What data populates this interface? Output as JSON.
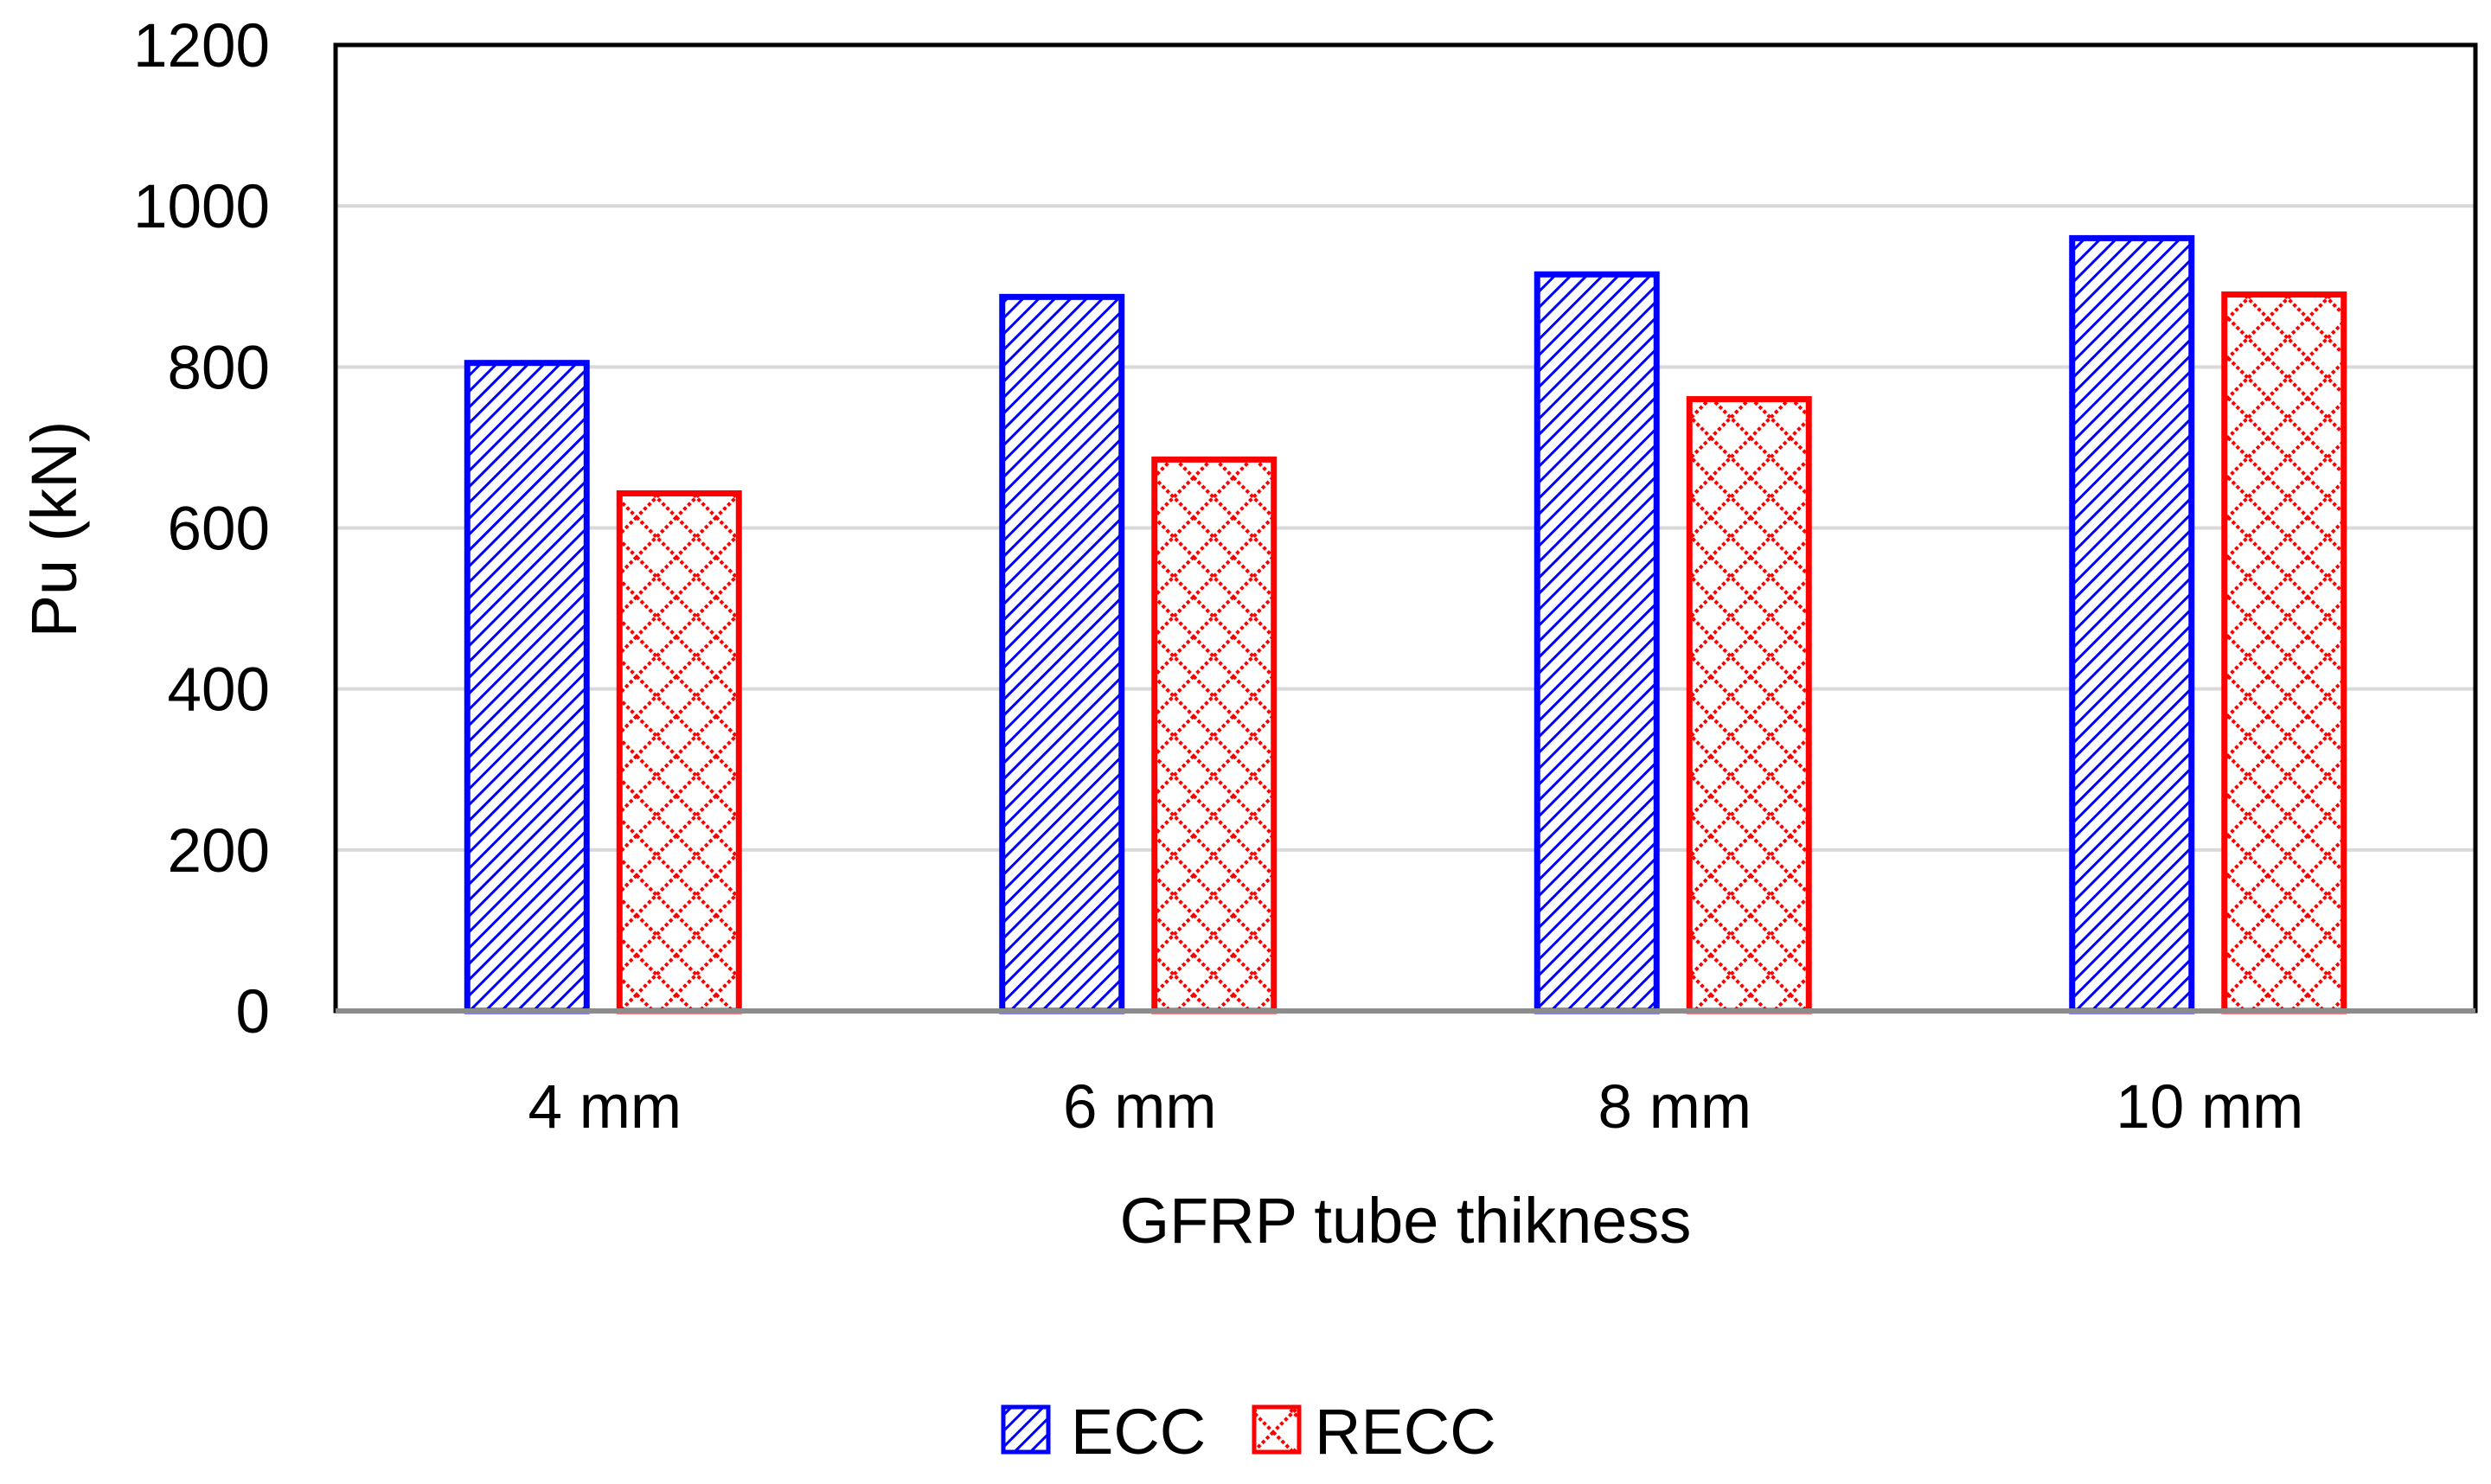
{
  "chart_data": {
    "type": "bar",
    "title": "",
    "xlabel": "GFRP tube thikness",
    "ylabel": "Pu (kN)",
    "categories": [
      "4 mm",
      "6 mm",
      "8 mm",
      "10 mm"
    ],
    "ylim": [
      0,
      1200
    ],
    "yticks": [
      0,
      200,
      400,
      600,
      800,
      1000,
      1200
    ],
    "ytick_labels": [
      "0",
      "200",
      "400",
      "600",
      "800",
      "1000",
      "1200"
    ],
    "grid": true,
    "legend_position": "bottom-center",
    "series": [
      {
        "name": "ECC",
        "values": [
          805,
          887,
          915,
          960
        ],
        "color": "#0000FF",
        "pattern": "diagonal-hatch"
      },
      {
        "name": "RECC",
        "values": [
          643,
          685,
          760,
          890
        ],
        "color": "#FF0000",
        "pattern": "crosshatch"
      }
    ]
  }
}
